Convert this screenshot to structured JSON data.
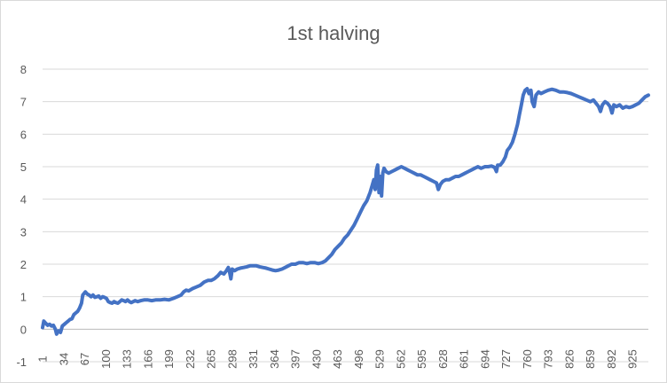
{
  "chart_data": {
    "type": "line",
    "title": "1st halving",
    "xlabel": "",
    "ylabel": "",
    "ylim": [
      -1,
      8
    ],
    "yticks": [
      -1,
      0,
      1,
      2,
      3,
      4,
      5,
      6,
      7,
      8
    ],
    "xlim": [
      1,
      950
    ],
    "xticks": [
      1,
      34,
      67,
      100,
      133,
      166,
      199,
      232,
      265,
      298,
      331,
      364,
      397,
      430,
      463,
      496,
      529,
      562,
      595,
      628,
      661,
      694,
      727,
      760,
      793,
      826,
      859,
      892,
      925
    ],
    "grid": "horizontal",
    "legend": "none",
    "series": [
      {
        "color": "#4472C4",
        "points": [
          [
            1,
            0.05
          ],
          [
            3,
            0.25
          ],
          [
            6,
            0.18
          ],
          [
            9,
            0.12
          ],
          [
            12,
            0.15
          ],
          [
            15,
            0.1
          ],
          [
            18,
            0.12
          ],
          [
            21,
            0.0
          ],
          [
            23,
            -0.15
          ],
          [
            26,
            -0.05
          ],
          [
            29,
            -0.1
          ],
          [
            32,
            0.1
          ],
          [
            35,
            0.15
          ],
          [
            38,
            0.2
          ],
          [
            41,
            0.25
          ],
          [
            44,
            0.3
          ],
          [
            47,
            0.32
          ],
          [
            50,
            0.45
          ],
          [
            53,
            0.5
          ],
          [
            56,
            0.55
          ],
          [
            59,
            0.65
          ],
          [
            62,
            0.8
          ],
          [
            64,
            1.05
          ],
          [
            66,
            1.1
          ],
          [
            68,
            1.15
          ],
          [
            71,
            1.08
          ],
          [
            74,
            1.05
          ],
          [
            77,
            1.0
          ],
          [
            80,
            1.05
          ],
          [
            83,
            0.98
          ],
          [
            86,
            1.0
          ],
          [
            89,
            1.02
          ],
          [
            92,
            0.95
          ],
          [
            95,
            1.0
          ],
          [
            98,
            0.98
          ],
          [
            101,
            0.95
          ],
          [
            104,
            0.85
          ],
          [
            107,
            0.82
          ],
          [
            110,
            0.8
          ],
          [
            113,
            0.85
          ],
          [
            116,
            0.82
          ],
          [
            119,
            0.8
          ],
          [
            122,
            0.85
          ],
          [
            125,
            0.9
          ],
          [
            128,
            0.88
          ],
          [
            131,
            0.85
          ],
          [
            134,
            0.9
          ],
          [
            137,
            0.85
          ],
          [
            140,
            0.82
          ],
          [
            143,
            0.85
          ],
          [
            146,
            0.88
          ],
          [
            150,
            0.85
          ],
          [
            155,
            0.88
          ],
          [
            160,
            0.9
          ],
          [
            166,
            0.9
          ],
          [
            172,
            0.88
          ],
          [
            178,
            0.9
          ],
          [
            185,
            0.9
          ],
          [
            192,
            0.92
          ],
          [
            199,
            0.9
          ],
          [
            206,
            0.95
          ],
          [
            212,
            1.0
          ],
          [
            218,
            1.05
          ],
          [
            222,
            1.15
          ],
          [
            226,
            1.2
          ],
          [
            230,
            1.18
          ],
          [
            236,
            1.25
          ],
          [
            242,
            1.3
          ],
          [
            248,
            1.35
          ],
          [
            254,
            1.45
          ],
          [
            260,
            1.5
          ],
          [
            265,
            1.5
          ],
          [
            270,
            1.55
          ],
          [
            276,
            1.65
          ],
          [
            280,
            1.75
          ],
          [
            285,
            1.7
          ],
          [
            289,
            1.8
          ],
          [
            292,
            1.9
          ],
          [
            294,
            1.75
          ],
          [
            296,
            1.55
          ],
          [
            298,
            1.85
          ],
          [
            302,
            1.8
          ],
          [
            306,
            1.85
          ],
          [
            311,
            1.88
          ],
          [
            316,
            1.9
          ],
          [
            321,
            1.92
          ],
          [
            326,
            1.95
          ],
          [
            331,
            1.95
          ],
          [
            336,
            1.95
          ],
          [
            341,
            1.92
          ],
          [
            346,
            1.9
          ],
          [
            351,
            1.88
          ],
          [
            356,
            1.85
          ],
          [
            361,
            1.82
          ],
          [
            366,
            1.8
          ],
          [
            371,
            1.82
          ],
          [
            376,
            1.85
          ],
          [
            381,
            1.9
          ],
          [
            386,
            1.95
          ],
          [
            391,
            2.0
          ],
          [
            397,
            2.0
          ],
          [
            403,
            2.05
          ],
          [
            409,
            2.05
          ],
          [
            415,
            2.02
          ],
          [
            421,
            2.05
          ],
          [
            427,
            2.05
          ],
          [
            433,
            2.02
          ],
          [
            439,
            2.05
          ],
          [
            444,
            2.1
          ],
          [
            449,
            2.2
          ],
          [
            454,
            2.3
          ],
          [
            459,
            2.45
          ],
          [
            464,
            2.55
          ],
          [
            469,
            2.65
          ],
          [
            474,
            2.8
          ],
          [
            479,
            2.9
          ],
          [
            484,
            3.05
          ],
          [
            489,
            3.2
          ],
          [
            494,
            3.4
          ],
          [
            499,
            3.6
          ],
          [
            504,
            3.8
          ],
          [
            509,
            3.95
          ],
          [
            514,
            4.2
          ],
          [
            517,
            4.4
          ],
          [
            520,
            4.6
          ],
          [
            522,
            4.3
          ],
          [
            524,
            4.9
          ],
          [
            526,
            5.05
          ],
          [
            528,
            4.2
          ],
          [
            530,
            4.7
          ],
          [
            532,
            4.1
          ],
          [
            534,
            4.8
          ],
          [
            536,
            4.95
          ],
          [
            539,
            4.85
          ],
          [
            543,
            4.8
          ],
          [
            548,
            4.85
          ],
          [
            553,
            4.9
          ],
          [
            558,
            4.95
          ],
          [
            563,
            5.0
          ],
          [
            568,
            4.95
          ],
          [
            573,
            4.9
          ],
          [
            578,
            4.85
          ],
          [
            583,
            4.8
          ],
          [
            588,
            4.75
          ],
          [
            593,
            4.75
          ],
          [
            598,
            4.7
          ],
          [
            603,
            4.65
          ],
          [
            608,
            4.6
          ],
          [
            613,
            4.55
          ],
          [
            618,
            4.5
          ],
          [
            621,
            4.3
          ],
          [
            624,
            4.45
          ],
          [
            628,
            4.55
          ],
          [
            633,
            4.6
          ],
          [
            638,
            4.6
          ],
          [
            643,
            4.65
          ],
          [
            648,
            4.7
          ],
          [
            653,
            4.7
          ],
          [
            658,
            4.75
          ],
          [
            663,
            4.8
          ],
          [
            668,
            4.85
          ],
          [
            673,
            4.9
          ],
          [
            678,
            4.95
          ],
          [
            683,
            5.0
          ],
          [
            688,
            4.95
          ],
          [
            694,
            5.0
          ],
          [
            699,
            5.0
          ],
          [
            704,
            5.02
          ],
          [
            709,
            4.98
          ],
          [
            712,
            4.85
          ],
          [
            714,
            5.05
          ],
          [
            718,
            5.05
          ],
          [
            722,
            5.15
          ],
          [
            726,
            5.3
          ],
          [
            729,
            5.5
          ],
          [
            733,
            5.6
          ],
          [
            737,
            5.75
          ],
          [
            741,
            6.0
          ],
          [
            745,
            6.3
          ],
          [
            748,
            6.6
          ],
          [
            751,
            6.9
          ],
          [
            754,
            7.2
          ],
          [
            757,
            7.35
          ],
          [
            760,
            7.4
          ],
          [
            763,
            7.25
          ],
          [
            766,
            7.35
          ],
          [
            768,
            7.0
          ],
          [
            771,
            6.85
          ],
          [
            774,
            7.2
          ],
          [
            778,
            7.3
          ],
          [
            782,
            7.25
          ],
          [
            787,
            7.3
          ],
          [
            793,
            7.35
          ],
          [
            799,
            7.38
          ],
          [
            805,
            7.35
          ],
          [
            811,
            7.3
          ],
          [
            817,
            7.3
          ],
          [
            823,
            7.28
          ],
          [
            829,
            7.25
          ],
          [
            835,
            7.2
          ],
          [
            841,
            7.15
          ],
          [
            847,
            7.1
          ],
          [
            853,
            7.05
          ],
          [
            859,
            7.0
          ],
          [
            864,
            7.05
          ],
          [
            868,
            6.95
          ],
          [
            872,
            6.85
          ],
          [
            875,
            6.7
          ],
          [
            878,
            6.9
          ],
          [
            882,
            7.0
          ],
          [
            886,
            6.95
          ],
          [
            890,
            6.85
          ],
          [
            893,
            6.65
          ],
          [
            896,
            6.9
          ],
          [
            900,
            6.85
          ],
          [
            905,
            6.9
          ],
          [
            910,
            6.8
          ],
          [
            915,
            6.85
          ],
          [
            920,
            6.82
          ],
          [
            925,
            6.85
          ],
          [
            930,
            6.9
          ],
          [
            935,
            6.95
          ],
          [
            940,
            7.05
          ],
          [
            945,
            7.15
          ],
          [
            950,
            7.2
          ]
        ]
      }
    ]
  }
}
